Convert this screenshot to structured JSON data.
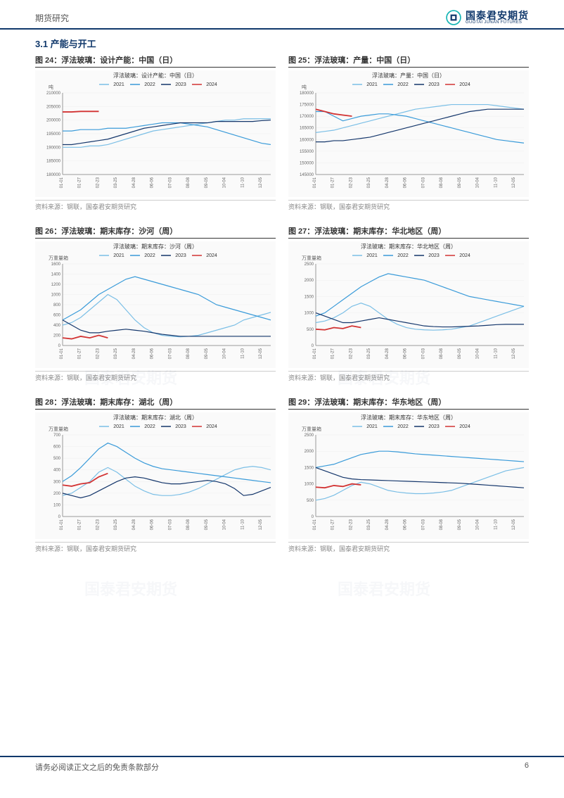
{
  "header": {
    "left": "期货研究",
    "company_cn": "国泰君安期货",
    "company_en": "GUOTAI JUNAN FUTURES"
  },
  "section": "3.1 产能与开工",
  "footer": {
    "left": "请务必阅读正文之后的免责条款部分",
    "page": "6"
  },
  "source_text": "资料来源：钢联，国泰君安期货研究",
  "series_colors": {
    "y2021": "#7bbfe6",
    "y2022": "#3a9bd9",
    "y2023": "#14366b",
    "y2024": "#d23333"
  },
  "legend": [
    "2021",
    "2022",
    "2023",
    "2024"
  ],
  "legend_colors": [
    "#7bbfe6",
    "#3a9bd9",
    "#14366b",
    "#d23333"
  ],
  "x_dates": [
    "01-01",
    "01-04",
    "01-27",
    "02-09",
    "02-23",
    "03-09",
    "03-25",
    "04-15",
    "04-28",
    "05-04",
    "06-06",
    "06-20",
    "07-03",
    "07-25",
    "08-08",
    "08-29",
    "09-05",
    "09-18",
    "10-04",
    "10-14",
    "11-10",
    "11-27",
    "12-05",
    "12-31"
  ],
  "charts": [
    {
      "id": "c24",
      "title": "图 24：浮法玻璃：设计产能：中国（日）",
      "inner_title": "浮法玻璃：设计产能：中国（日）",
      "ylabel": "吨",
      "ylim": [
        180000,
        210000
      ],
      "ytick_step": 5000,
      "series": {
        "y2021": [
          190000,
          190000,
          190000,
          190500,
          190500,
          191000,
          192000,
          193000,
          194000,
          195000,
          196000,
          196500,
          197000,
          197500,
          198000,
          198500,
          199000,
          199500,
          200000,
          200000,
          200500,
          200500,
          200500,
          200500
        ],
        "y2022": [
          196000,
          196000,
          196500,
          196500,
          196500,
          197000,
          197000,
          197000,
          197500,
          198000,
          198500,
          199000,
          199000,
          199000,
          198500,
          198000,
          197500,
          196500,
          195500,
          194500,
          193500,
          192500,
          191500,
          191000
        ],
        "y2023": [
          191000,
          191000,
          191500,
          192000,
          192500,
          193000,
          194000,
          195000,
          196000,
          197000,
          197500,
          198000,
          198500,
          199000,
          199000,
          199000,
          199000,
          199500,
          199500,
          199500,
          199500,
          199500,
          199800,
          200000
        ],
        "y2024": [
          203000,
          203000,
          203200,
          203200,
          203200
        ]
      }
    },
    {
      "id": "c25",
      "title": "图 25：浮法玻璃：产量：中国（日）",
      "inner_title": "浮法玻璃：产量：中国（日）",
      "ylabel": "吨",
      "ylim": [
        145000,
        180000
      ],
      "ytick_step": 5000,
      "series": {
        "y2021": [
          163000,
          163500,
          164000,
          165000,
          166000,
          167000,
          168000,
          169000,
          170000,
          171000,
          172000,
          173000,
          173500,
          174000,
          174500,
          175000,
          175000,
          175000,
          175000,
          175000,
          174500,
          174000,
          173500,
          173000
        ],
        "y2022": [
          172000,
          172000,
          170000,
          168000,
          169000,
          170000,
          170500,
          171000,
          171000,
          170500,
          170000,
          169000,
          168000,
          167000,
          166000,
          165000,
          164000,
          163000,
          162000,
          161000,
          160000,
          159500,
          159000,
          158500
        ],
        "y2023": [
          159000,
          159000,
          159500,
          159500,
          160000,
          160500,
          161000,
          162000,
          163000,
          164000,
          165000,
          166000,
          167000,
          168000,
          169000,
          170000,
          171000,
          172000,
          172500,
          173000,
          173000,
          173000,
          173000,
          173000
        ],
        "y2024": [
          173000,
          172000,
          171000,
          170500,
          170000
        ]
      }
    },
    {
      "id": "c26",
      "title": "图 26：浮法玻璃：期末库存：沙河（周）",
      "inner_title": "浮法玻璃：期末库存：沙河（周）",
      "ylabel": "万重量箱",
      "ylim": [
        0,
        1600
      ],
      "ytick_step": 200,
      "series": {
        "y2021": [
          400,
          450,
          550,
          700,
          850,
          1000,
          900,
          700,
          500,
          350,
          250,
          200,
          180,
          170,
          180,
          200,
          250,
          300,
          350,
          400,
          500,
          550,
          600,
          650
        ],
        "y2022": [
          500,
          600,
          700,
          850,
          1000,
          1100,
          1200,
          1300,
          1350,
          1300,
          1250,
          1200,
          1150,
          1100,
          1050,
          1000,
          900,
          800,
          750,
          700,
          650,
          600,
          550,
          500
        ],
        "y2023": [
          500,
          400,
          300,
          250,
          250,
          280,
          300,
          320,
          300,
          280,
          250,
          220,
          200,
          180,
          180,
          180,
          180,
          180,
          180,
          180,
          180,
          180,
          180,
          180
        ],
        "y2024": [
          150,
          130,
          180,
          150,
          200,
          150
        ]
      }
    },
    {
      "id": "c27",
      "title": "图 27：浮法玻璃：期末库存：华北地区（周）",
      "inner_title": "浮法玻璃：期末库存：华北地区（周）",
      "ylabel": "万重量箱",
      "ylim": [
        0,
        2500
      ],
      "ytick_step": 500,
      "series": {
        "y2021": [
          700,
          750,
          850,
          1000,
          1200,
          1300,
          1200,
          1000,
          800,
          650,
          550,
          500,
          480,
          470,
          480,
          500,
          550,
          600,
          700,
          800,
          900,
          1000,
          1100,
          1200
        ],
        "y2022": [
          900,
          1000,
          1200,
          1400,
          1600,
          1800,
          1950,
          2100,
          2200,
          2150,
          2100,
          2050,
          2000,
          1900,
          1800,
          1700,
          1600,
          1500,
          1450,
          1400,
          1350,
          1300,
          1250,
          1200
        ],
        "y2023": [
          1000,
          900,
          800,
          700,
          700,
          750,
          800,
          850,
          800,
          750,
          700,
          650,
          600,
          580,
          570,
          570,
          580,
          590,
          600,
          620,
          640,
          650,
          650,
          650
        ],
        "y2024": [
          500,
          480,
          550,
          520,
          600,
          550
        ]
      }
    },
    {
      "id": "c28",
      "title": "图 28：浮法玻璃：期末库存：湖北（周）",
      "inner_title": "浮法玻璃：期末库存：湖北（周）",
      "ylabel": "万重量箱",
      "ylim": [
        0,
        700
      ],
      "ytick_step": 100,
      "series": {
        "y2021": [
          180,
          200,
          250,
          300,
          380,
          420,
          380,
          320,
          260,
          220,
          190,
          180,
          180,
          190,
          210,
          240,
          280,
          320,
          360,
          400,
          420,
          430,
          420,
          400
        ],
        "y2022": [
          300,
          350,
          420,
          500,
          580,
          630,
          600,
          550,
          500,
          460,
          430,
          410,
          400,
          390,
          380,
          370,
          360,
          350,
          340,
          330,
          320,
          310,
          300,
          290
        ],
        "y2023": [
          200,
          180,
          160,
          180,
          220,
          260,
          300,
          330,
          340,
          330,
          310,
          290,
          280,
          280,
          290,
          300,
          310,
          300,
          280,
          240,
          180,
          190,
          220,
          250
        ],
        "y2024": [
          270,
          260,
          280,
          290,
          340,
          370
        ]
      }
    },
    {
      "id": "c29",
      "title": "图 29：浮法玻璃：期末库存：华东地区（周）",
      "inner_title": "浮法玻璃：期末库存：华东地区（周）",
      "ylabel": "万重量箱",
      "ylim": [
        0,
        2500
      ],
      "ytick_step": 500,
      "series": {
        "y2021": [
          500,
          550,
          650,
          800,
          950,
          1050,
          1000,
          900,
          800,
          750,
          720,
          700,
          700,
          720,
          750,
          800,
          900,
          1000,
          1100,
          1200,
          1300,
          1400,
          1450,
          1500
        ],
        "y2022": [
          1500,
          1550,
          1600,
          1700,
          1800,
          1900,
          1950,
          2000,
          2000,
          1980,
          1950,
          1920,
          1900,
          1880,
          1860,
          1840,
          1820,
          1800,
          1780,
          1760,
          1740,
          1720,
          1700,
          1680
        ],
        "y2023": [
          1500,
          1400,
          1300,
          1200,
          1150,
          1130,
          1120,
          1110,
          1100,
          1090,
          1080,
          1070,
          1060,
          1050,
          1040,
          1030,
          1020,
          1000,
          980,
          960,
          940,
          920,
          900,
          880
        ],
        "y2024": [
          900,
          880,
          950,
          920,
          1000,
          970
        ]
      }
    }
  ]
}
